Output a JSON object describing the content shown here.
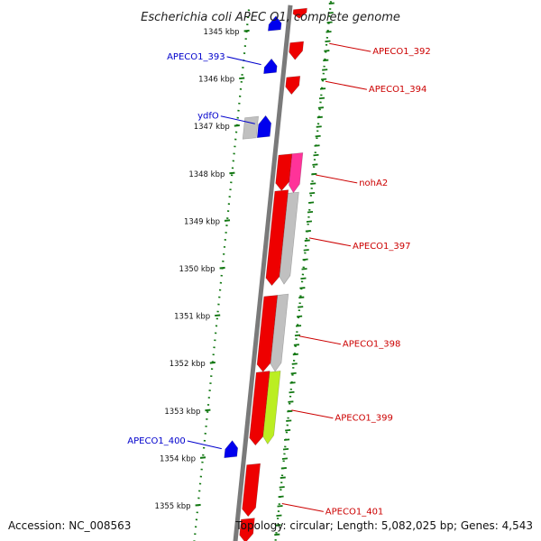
{
  "title": "Escherichia coli APEC O1, complete genome",
  "footer": {
    "accession": "Accession: NC_008563",
    "topology": "Topology: circular; Length: 5,082,025 bp; Genes: 4,543"
  },
  "colors": {
    "forward_gene": "#ee0000",
    "reverse_gene": "#0000ee",
    "pseudo_gray": "#c0c0c0",
    "highlight_pink": "#ff3399",
    "highlight_yellowgreen": "#bbee22",
    "backbone": "#7a7a7a",
    "tick_green": "#117711",
    "forward_label": "#cc0000",
    "reverse_label": "#0000cc"
  },
  "ticks": [
    {
      "kbp": 1345,
      "label": "1345 kbp"
    },
    {
      "kbp": 1346,
      "label": "1346 kbp"
    },
    {
      "kbp": 1347,
      "label": "1347 kbp"
    },
    {
      "kbp": 1348,
      "label": "1348 kbp"
    },
    {
      "kbp": 1349,
      "label": "1349 kbp"
    },
    {
      "kbp": 1350,
      "label": "1350 kbp"
    },
    {
      "kbp": 1351,
      "label": "1351 kbp"
    },
    {
      "kbp": 1352,
      "label": "1352 kbp"
    },
    {
      "kbp": 1353,
      "label": "1353 kbp"
    },
    {
      "kbp": 1354,
      "label": "1354 kbp"
    },
    {
      "kbp": 1355,
      "label": "1355 kbp"
    }
  ],
  "genes_forward": [
    {
      "label": "",
      "start": 1344.65,
      "end": 1344.85,
      "color": "#ee0000"
    },
    {
      "label": "APECO1_392",
      "start": 1345.35,
      "end": 1345.72,
      "color": "#ee0000"
    },
    {
      "label": "APECO1_394",
      "start": 1346.08,
      "end": 1346.45,
      "color": "#ee0000"
    },
    {
      "label": "",
      "start": 1347.72,
      "end": 1348.48,
      "color": "#ee0000"
    },
    {
      "label": "",
      "start": 1348.48,
      "end": 1350.48,
      "color": "#ee0000"
    },
    {
      "label": "",
      "start": 1350.7,
      "end": 1352.3,
      "color": "#ee0000"
    },
    {
      "label": "",
      "start": 1352.3,
      "end": 1353.85,
      "color": "#ee0000"
    },
    {
      "label": "",
      "start": 1354.25,
      "end": 1355.35,
      "color": "#ee0000"
    },
    {
      "label": "",
      "start": 1355.4,
      "end": 1355.9,
      "color": "#ee0000"
    }
  ],
  "genes_inner": [
    {
      "label": "nohA2",
      "start": 1347.72,
      "end": 1348.55,
      "color": "#ff3399"
    },
    {
      "label": "APECO1_397",
      "start": 1348.55,
      "end": 1350.48,
      "color": "#c0c0c0"
    },
    {
      "label": "APECO1_398",
      "start": 1350.7,
      "end": 1352.32,
      "color": "#c0c0c0"
    },
    {
      "label": "APECO1_399",
      "start": 1352.32,
      "end": 1353.85,
      "color": "#bbee22"
    }
  ],
  "genes_reverse": [
    {
      "label": "",
      "start": 1344.75,
      "end": 1345.05,
      "color": "#0000ee"
    },
    {
      "label": "APECO1_393",
      "start": 1345.65,
      "end": 1345.95,
      "color": "#0000ee"
    },
    {
      "label": "ydfO",
      "start": 1346.85,
      "end": 1347.3,
      "color": "#0000ee"
    },
    {
      "label": "APECO1_400",
      "start": 1353.7,
      "end": 1354.05,
      "color": "#0000ee"
    }
  ],
  "pseudo_reverse": [
    {
      "label": "",
      "start": 1346.85,
      "end": 1347.3,
      "color": "#c0c0c0"
    }
  ],
  "labels_forward": [
    {
      "text": "APECO1_392",
      "kbp": 1345.45
    },
    {
      "text": "APECO1_394",
      "kbp": 1346.25
    },
    {
      "text": "nohA2",
      "kbp": 1348.22
    },
    {
      "text": "APECO1_397",
      "kbp": 1349.55
    },
    {
      "text": "APECO1_398",
      "kbp": 1351.62
    },
    {
      "text": "APECO1_399",
      "kbp": 1353.18
    },
    {
      "text": "APECO1_401",
      "kbp": 1355.15
    }
  ],
  "labels_reverse": [
    {
      "text": "APECO1_393",
      "kbp": 1345.75
    },
    {
      "text": "ydfO",
      "kbp": 1347.0
    },
    {
      "text": "APECO1_400",
      "kbp": 1353.85
    }
  ]
}
